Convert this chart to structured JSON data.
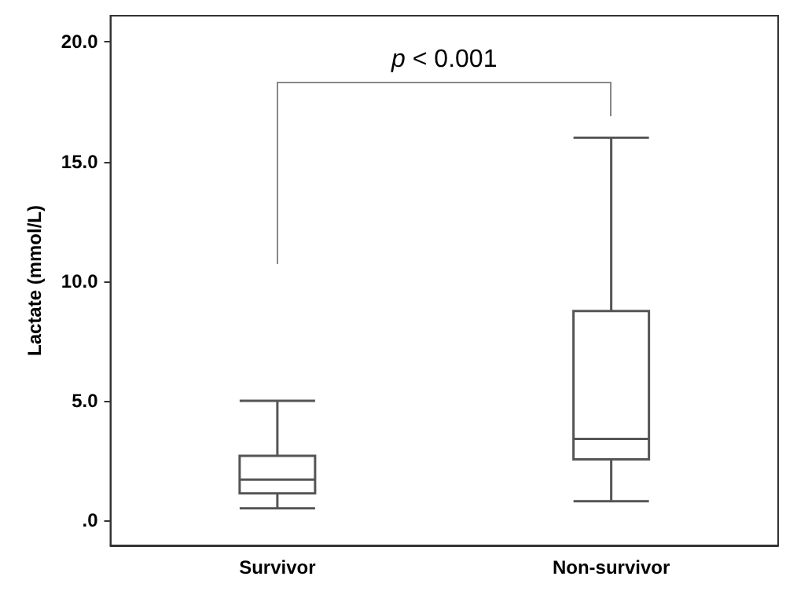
{
  "chart_data": {
    "type": "box",
    "ylabel": "Lactate (mmol/L)",
    "categories": [
      "Survivor",
      "Non-survivor"
    ],
    "boxes": [
      {
        "low": 0.5,
        "q1": 1.13,
        "median": 1.7,
        "q3": 2.7,
        "high": 5.0
      },
      {
        "low": 0.8,
        "q1": 2.55,
        "median": 3.4,
        "q3": 8.75,
        "high": 16.0
      }
    ],
    "ylim": [
      -1.05,
      21.1
    ],
    "yticks": [
      {
        "value": 0,
        "label": ".0"
      },
      {
        "value": 5,
        "label": "5.0"
      },
      {
        "value": 10,
        "label": "10.0"
      },
      {
        "value": 15,
        "label": "15.0"
      },
      {
        "value": 20,
        "label": "20.0"
      }
    ],
    "grid": false,
    "annotations": [
      "p < 0.001"
    ]
  }
}
